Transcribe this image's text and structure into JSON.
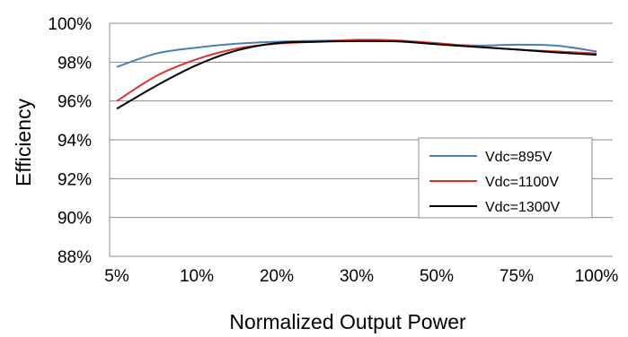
{
  "chart_data": {
    "type": "line",
    "title": "",
    "xlabel": "Normalized Output Power",
    "ylabel": "Efficiency",
    "categories": [
      "5%",
      "10%",
      "20%",
      "30%",
      "50%",
      "75%",
      "100%"
    ],
    "yticks": [
      "88%",
      "90%",
      "92%",
      "94%",
      "96%",
      "98%",
      "100%"
    ],
    "ylim": [
      88,
      100
    ],
    "grid": "horizontal",
    "legend": "right",
    "x": [
      0,
      0.5,
      1,
      1.5,
      2,
      2.5,
      3,
      3.5,
      4,
      4.5,
      5,
      5.5,
      6
    ],
    "series": [
      {
        "name": "Vdc=895V",
        "color": "#4a7ebb",
        "values": [
          97.75,
          98.45,
          98.75,
          98.95,
          99.05,
          99.1,
          99.12,
          99.08,
          98.95,
          98.85,
          98.9,
          98.85,
          98.55
        ]
      },
      {
        "name": "Vdc=1100V",
        "color": "#e03131",
        "values": [
          96.0,
          97.3,
          98.15,
          98.7,
          98.95,
          99.05,
          99.15,
          99.12,
          98.98,
          98.8,
          98.65,
          98.55,
          98.45
        ]
      },
      {
        "name": "Vdc=1300V",
        "color": "#000000",
        "values": [
          95.6,
          96.8,
          97.85,
          98.6,
          98.98,
          99.05,
          99.08,
          99.07,
          98.92,
          98.78,
          98.65,
          98.5,
          98.38
        ]
      }
    ]
  }
}
